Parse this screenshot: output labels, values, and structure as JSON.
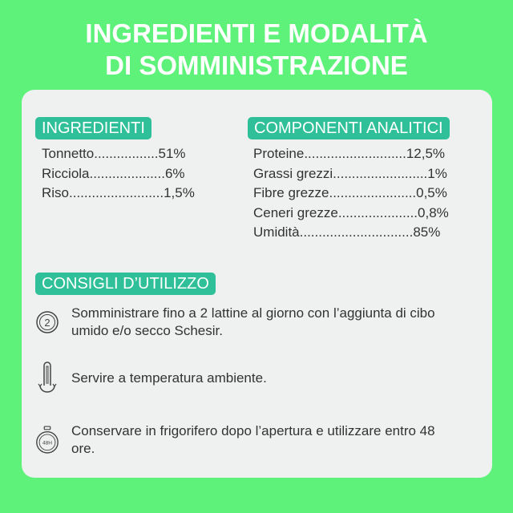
{
  "title": {
    "line1": "INGREDIENTI E MODALITÀ",
    "line2": "DI SOMMINISTRAZIONE"
  },
  "ingredients": {
    "label": "INGREDIENTI",
    "items": [
      "Tonnetto.................51%",
      "Ricciola....................6%",
      "Riso.........................1,5%"
    ]
  },
  "analytic": {
    "label": "COMPONENTI ANALITICI",
    "items": [
      "Proteine...........................12,5%",
      "Grassi grezzi.........................1%",
      "Fibre grezze.......................0,5%",
      "Ceneri grezze.....................0,8%",
      "Umidità..............................85%"
    ]
  },
  "tips": {
    "label": "CONSIGLI D’UTILIZZO",
    "items": [
      {
        "icon": "two-cans-icon",
        "icon_text": "2",
        "text": "Somministrare fino a 2 lattine al giorno con l’aggiunta di cibo umido e/o secco Schesir."
      },
      {
        "icon": "thermometer-icon",
        "text": "Servire a temperatura ambiente."
      },
      {
        "icon": "stopwatch-48h-icon",
        "icon_text": "48H",
        "text": "Conservare in frigorifero dopo l’apertura e utilizzare entro 48 ore."
      }
    ]
  },
  "colors": {
    "background": "#5ff27b",
    "badge": "#30c099",
    "panel": "#eef1ef"
  }
}
